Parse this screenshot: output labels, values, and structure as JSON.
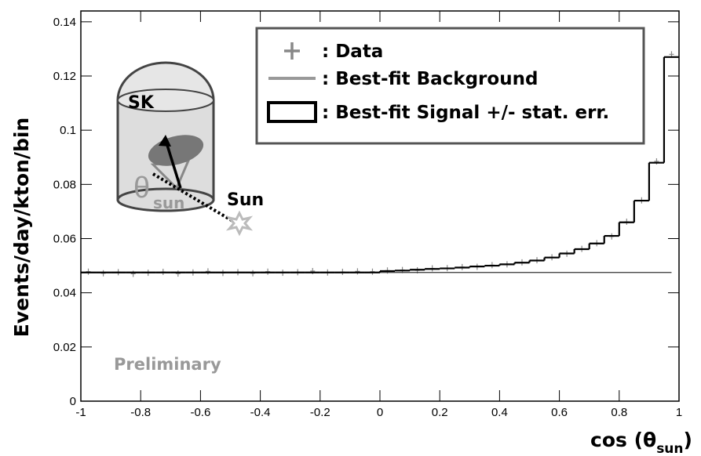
{
  "chart_data": {
    "type": "line",
    "ylabel": "Events/day/kton/bin",
    "xlabel": "cos (θ",
    "xlabel_sub": "sun",
    "xlabel_end": ")",
    "annotations": {
      "preliminary": "Preliminary",
      "sk": "SK",
      "sun": "Sun",
      "theta": "θ",
      "theta_sub": "sun"
    },
    "xlim": [
      -1,
      1
    ],
    "xticks": [
      -1,
      -0.8,
      -0.6,
      -0.4,
      -0.2,
      0,
      0.2,
      0.4,
      0.6,
      0.8,
      1
    ],
    "ylim": [
      0,
      0.144
    ],
    "yticks": [
      0,
      0.02,
      0.04,
      0.06,
      0.08,
      0.1,
      0.12,
      0.14
    ],
    "x": [
      -0.975,
      -0.925,
      -0.875,
      -0.825,
      -0.775,
      -0.725,
      -0.675,
      -0.625,
      -0.575,
      -0.525,
      -0.475,
      -0.425,
      -0.375,
      -0.325,
      -0.275,
      -0.225,
      -0.175,
      -0.125,
      -0.075,
      -0.025,
      0.025,
      0.075,
      0.125,
      0.175,
      0.225,
      0.275,
      0.325,
      0.375,
      0.425,
      0.475,
      0.525,
      0.575,
      0.625,
      0.675,
      0.725,
      0.775,
      0.825,
      0.875,
      0.925,
      0.975
    ],
    "series": [
      {
        "name": ": Data",
        "style": "markers",
        "color": "#888888",
        "values": [
          0.0478,
          0.0472,
          0.0476,
          0.047,
          0.0474,
          0.0477,
          0.0471,
          0.0475,
          0.0479,
          0.0473,
          0.0476,
          0.0472,
          0.0478,
          0.0474,
          0.0476,
          0.048,
          0.0475,
          0.0477,
          0.0479,
          0.0478,
          0.0482,
          0.0484,
          0.0483,
          0.049,
          0.0491,
          0.0495,
          0.0496,
          0.0502,
          0.0505,
          0.0512,
          0.052,
          0.0531,
          0.0544,
          0.0562,
          0.0583,
          0.0608,
          0.0662,
          0.0741,
          0.0885,
          0.128
        ]
      },
      {
        "name": ": Best-fit Background",
        "style": "line",
        "color": "#999999",
        "values": [
          0.0475,
          0.0475,
          0.0475,
          0.0475,
          0.0475,
          0.0475,
          0.0475,
          0.0475,
          0.0475,
          0.0475,
          0.0475,
          0.0475,
          0.0475,
          0.0475,
          0.0475,
          0.0475,
          0.0475,
          0.0475,
          0.0475,
          0.0475,
          0.0475,
          0.0475,
          0.0475,
          0.0475,
          0.0475,
          0.0475,
          0.0475,
          0.0475,
          0.0475,
          0.0475,
          0.0475,
          0.0475,
          0.0475,
          0.0475,
          0.0475,
          0.0475,
          0.0475,
          0.0475,
          0.0475,
          0.0475
        ]
      },
      {
        "name": ": Best-fit Signal +/- stat. err.",
        "style": "step",
        "color": "#000000",
        "values": [
          0.0475,
          0.0475,
          0.0475,
          0.0475,
          0.0475,
          0.0475,
          0.0475,
          0.0475,
          0.0475,
          0.0475,
          0.0475,
          0.0475,
          0.0475,
          0.0475,
          0.0475,
          0.0475,
          0.0475,
          0.0475,
          0.0475,
          0.0475,
          0.048,
          0.0482,
          0.0485,
          0.0488,
          0.049,
          0.0493,
          0.0497,
          0.05,
          0.0505,
          0.0511,
          0.0519,
          0.053,
          0.0545,
          0.0561,
          0.0582,
          0.061,
          0.066,
          0.074,
          0.088,
          0.127
        ]
      }
    ]
  }
}
